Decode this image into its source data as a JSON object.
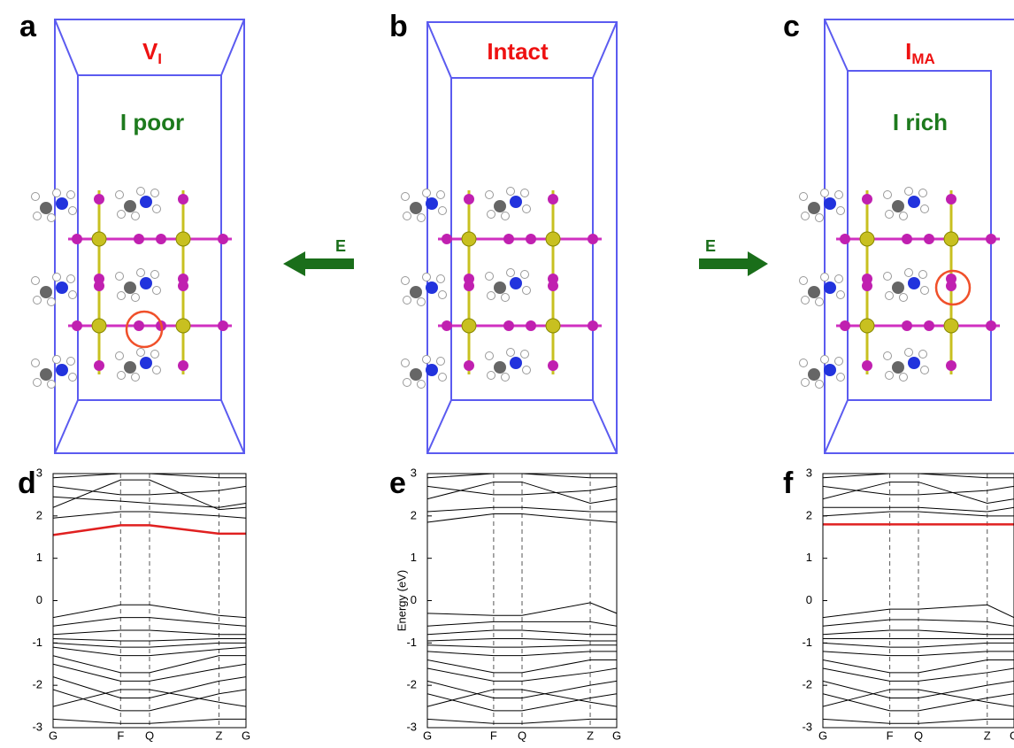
{
  "structures": [
    {
      "letter": "a",
      "title": "V",
      "title_sub": "I",
      "condition": "I poor"
    },
    {
      "letter": "b",
      "title": "Intact"
    },
    {
      "letter": "c",
      "title": "I",
      "title_sub": "MA",
      "condition": "I rich"
    }
  ],
  "arrows": [
    {
      "label": "E"
    },
    {
      "label": "E"
    }
  ],
  "chart_data": [
    {
      "type": "line",
      "letter": "d",
      "grid": "x",
      "x": [
        0,
        0.35,
        0.5,
        0.86,
        1
      ],
      "xlim": [
        0,
        1
      ],
      "xticks": [
        {
          "value": 0,
          "label": "G"
        },
        {
          "value": 0.35,
          "label": "F"
        },
        {
          "value": 0.5,
          "label": "Q"
        },
        {
          "value": 0.86,
          "label": "Z"
        },
        {
          "value": 1,
          "label": "G"
        }
      ],
      "ylim": [
        -3,
        3
      ],
      "yticks": [
        -3,
        -2,
        -1,
        0,
        1,
        2,
        3
      ],
      "series": [
        {
          "color": "#e02020",
          "values": [
            1.55,
            1.78,
            1.78,
            1.58,
            1.58
          ]
        },
        {
          "color": "#000000",
          "values": [
            2.9,
            3.0,
            3.0,
            2.9,
            2.9
          ]
        },
        {
          "color": "#000000",
          "values": [
            2.7,
            2.5,
            2.5,
            2.6,
            2.7
          ]
        },
        {
          "color": "#000000",
          "values": [
            2.45,
            2.35,
            2.3,
            2.2,
            2.3
          ]
        },
        {
          "color": "#000000",
          "values": [
            2.2,
            2.85,
            2.85,
            2.15,
            2.2
          ]
        },
        {
          "color": "#000000",
          "values": [
            1.95,
            2.1,
            2.1,
            2.0,
            1.95
          ]
        },
        {
          "color": "#000000",
          "values": [
            -0.4,
            -0.1,
            -0.1,
            -0.35,
            -0.4
          ]
        },
        {
          "color": "#000000",
          "values": [
            -0.6,
            -0.4,
            -0.4,
            -0.55,
            -0.6
          ]
        },
        {
          "color": "#000000",
          "values": [
            -0.8,
            -0.7,
            -0.7,
            -0.8,
            -0.8
          ]
        },
        {
          "color": "#000000",
          "values": [
            -0.9,
            -0.95,
            -0.95,
            -0.9,
            -0.9
          ]
        },
        {
          "color": "#000000",
          "values": [
            -1.0,
            -1.1,
            -1.1,
            -1.0,
            -1.0
          ]
        },
        {
          "color": "#000000",
          "values": [
            -1.1,
            -1.3,
            -1.3,
            -1.15,
            -1.1
          ]
        },
        {
          "color": "#000000",
          "values": [
            -1.3,
            -1.7,
            -1.7,
            -1.3,
            -1.3
          ]
        },
        {
          "color": "#000000",
          "values": [
            -1.5,
            -1.9,
            -1.9,
            -1.6,
            -1.5
          ]
        },
        {
          "color": "#000000",
          "values": [
            -1.8,
            -2.3,
            -2.3,
            -1.9,
            -1.8
          ]
        },
        {
          "color": "#000000",
          "values": [
            -2.1,
            -2.6,
            -2.6,
            -2.2,
            -2.1
          ]
        },
        {
          "color": "#000000",
          "values": [
            -2.5,
            -2.1,
            -2.1,
            -2.4,
            -2.5
          ]
        },
        {
          "color": "#000000",
          "values": [
            -2.8,
            -2.9,
            -2.9,
            -2.8,
            -2.8
          ]
        }
      ]
    },
    {
      "type": "line",
      "letter": "e",
      "ylabel": "Energy (eV)",
      "grid": "x",
      "x": [
        0,
        0.35,
        0.5,
        0.86,
        1
      ],
      "xlim": [
        0,
        1
      ],
      "xticks": [
        {
          "value": 0,
          "label": "G"
        },
        {
          "value": 0.35,
          "label": "F"
        },
        {
          "value": 0.5,
          "label": "Q"
        },
        {
          "value": 0.86,
          "label": "Z"
        },
        {
          "value": 1,
          "label": "G"
        }
      ],
      "ylim": [
        -3,
        3
      ],
      "yticks": [
        -3,
        -2,
        -1,
        0,
        1,
        2,
        3
      ],
      "series": [
        {
          "color": "#000000",
          "values": [
            2.9,
            3.0,
            3.0,
            2.9,
            2.9
          ]
        },
        {
          "color": "#000000",
          "values": [
            2.7,
            2.5,
            2.5,
            2.6,
            2.7
          ]
        },
        {
          "color": "#000000",
          "values": [
            2.4,
            2.8,
            2.8,
            2.3,
            2.4
          ]
        },
        {
          "color": "#000000",
          "values": [
            2.1,
            2.2,
            2.2,
            2.1,
            2.1
          ]
        },
        {
          "color": "#000000",
          "values": [
            1.85,
            2.05,
            2.05,
            1.9,
            1.85
          ]
        },
        {
          "color": "#000000",
          "values": [
            -0.3,
            -0.35,
            -0.35,
            -0.05,
            -0.3
          ]
        },
        {
          "color": "#000000",
          "values": [
            -0.6,
            -0.5,
            -0.5,
            -0.5,
            -0.6
          ]
        },
        {
          "color": "#000000",
          "values": [
            -0.8,
            -0.7,
            -0.7,
            -0.8,
            -0.8
          ]
        },
        {
          "color": "#000000",
          "values": [
            -0.95,
            -0.9,
            -0.9,
            -0.95,
            -0.95
          ]
        },
        {
          "color": "#000000",
          "values": [
            -1.05,
            -1.1,
            -1.1,
            -1.05,
            -1.05
          ]
        },
        {
          "color": "#000000",
          "values": [
            -1.2,
            -1.3,
            -1.3,
            -1.2,
            -1.2
          ]
        },
        {
          "color": "#000000",
          "values": [
            -1.4,
            -1.7,
            -1.7,
            -1.4,
            -1.4
          ]
        },
        {
          "color": "#000000",
          "values": [
            -1.6,
            -1.9,
            -1.9,
            -1.7,
            -1.6
          ]
        },
        {
          "color": "#000000",
          "values": [
            -1.9,
            -2.3,
            -2.3,
            -2.0,
            -1.9
          ]
        },
        {
          "color": "#000000",
          "values": [
            -2.2,
            -2.6,
            -2.6,
            -2.3,
            -2.2
          ]
        },
        {
          "color": "#000000",
          "values": [
            -2.5,
            -2.1,
            -2.1,
            -2.4,
            -2.5
          ]
        },
        {
          "color": "#000000",
          "values": [
            -2.8,
            -2.9,
            -2.9,
            -2.8,
            -2.8
          ]
        }
      ]
    },
    {
      "type": "line",
      "letter": "f",
      "grid": "x",
      "x": [
        0,
        0.35,
        0.5,
        0.86,
        1
      ],
      "xlim": [
        0,
        1
      ],
      "xticks": [
        {
          "value": 0,
          "label": "G"
        },
        {
          "value": 0.35,
          "label": "F"
        },
        {
          "value": 0.5,
          "label": "Q"
        },
        {
          "value": 0.86,
          "label": "Z"
        },
        {
          "value": 1,
          "label": "G"
        }
      ],
      "ylim": [
        -3,
        3
      ],
      "yticks": [
        -3,
        -2,
        -1,
        0,
        1,
        2,
        3
      ],
      "series": [
        {
          "color": "#e02020",
          "values": [
            1.8,
            1.8,
            1.8,
            1.8,
            1.8
          ]
        },
        {
          "color": "#000000",
          "values": [
            2.9,
            3.0,
            3.0,
            2.9,
            2.9
          ]
        },
        {
          "color": "#000000",
          "values": [
            2.7,
            2.5,
            2.5,
            2.6,
            2.7
          ]
        },
        {
          "color": "#000000",
          "values": [
            2.4,
            2.8,
            2.8,
            2.3,
            2.4
          ]
        },
        {
          "color": "#000000",
          "values": [
            2.2,
            2.2,
            2.2,
            2.1,
            2.2
          ]
        },
        {
          "color": "#000000",
          "values": [
            2.0,
            2.1,
            2.1,
            2.0,
            2.0
          ]
        },
        {
          "color": "#000000",
          "values": [
            -0.4,
            -0.2,
            -0.2,
            -0.1,
            -0.4
          ]
        },
        {
          "color": "#000000",
          "values": [
            -0.6,
            -0.45,
            -0.45,
            -0.5,
            -0.6
          ]
        },
        {
          "color": "#000000",
          "values": [
            -0.8,
            -0.7,
            -0.7,
            -0.8,
            -0.8
          ]
        },
        {
          "color": "#000000",
          "values": [
            -0.9,
            -0.9,
            -0.9,
            -0.9,
            -0.9
          ]
        },
        {
          "color": "#000000",
          "values": [
            -1.0,
            -1.1,
            -1.1,
            -1.0,
            -1.0
          ]
        },
        {
          "color": "#000000",
          "values": [
            -1.2,
            -1.3,
            -1.3,
            -1.2,
            -1.2
          ]
        },
        {
          "color": "#000000",
          "values": [
            -1.4,
            -1.7,
            -1.7,
            -1.4,
            -1.4
          ]
        },
        {
          "color": "#000000",
          "values": [
            -1.6,
            -1.9,
            -1.9,
            -1.7,
            -1.6
          ]
        },
        {
          "color": "#000000",
          "values": [
            -1.9,
            -2.3,
            -2.3,
            -2.0,
            -1.9
          ]
        },
        {
          "color": "#000000",
          "values": [
            -2.2,
            -2.6,
            -2.6,
            -2.3,
            -2.2
          ]
        },
        {
          "color": "#000000",
          "values": [
            -2.5,
            -2.1,
            -2.1,
            -2.4,
            -2.5
          ]
        },
        {
          "color": "#000000",
          "values": [
            -2.8,
            -2.9,
            -2.9,
            -2.8,
            -2.8
          ]
        }
      ]
    }
  ]
}
